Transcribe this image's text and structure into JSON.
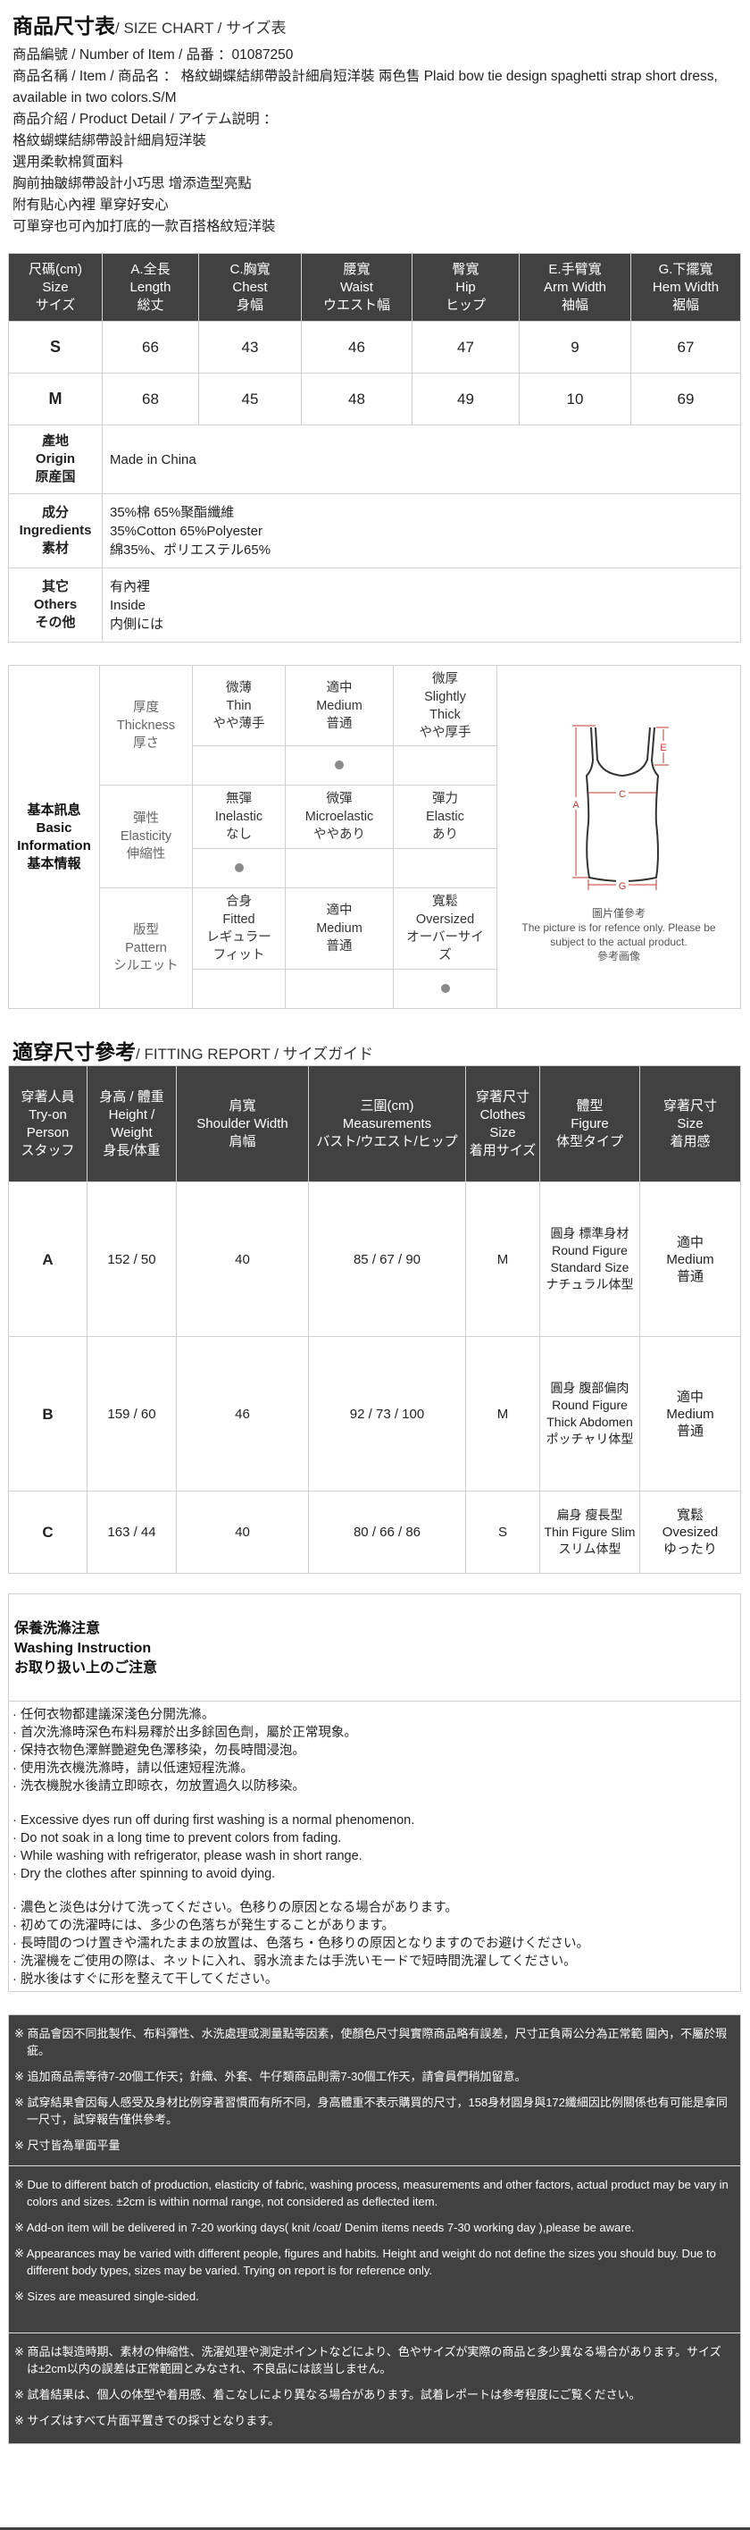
{
  "header": {
    "title_main": "商品尺寸表",
    "title_sub": "/ SIZE CHART / サイズ表"
  },
  "intro": {
    "number": "商品編號 / Number of Item / 品番 ：01087250",
    "name": "商品名稱 / Item / 商品名 ： 格紋蝴蝶結綁帶設計細肩短洋裝 兩色售 Plaid bow tie design spaghetti strap short dress, available in two colors.S/M",
    "detail_label": "商品介紹 / Product Detail / アイテム説明 ：",
    "details": [
      "格紋蝴蝶結綁帶設計細肩短洋裝",
      "選用柔軟棉質面料",
      "胸前抽皺綁帶設計小巧思 增添造型亮點",
      "附有貼心內裡 單穿好安心",
      "可單穿也可內加打底的一款百搭格紋短洋裝"
    ]
  },
  "size_table": {
    "headers": [
      [
        "尺碼(cm)",
        "Size",
        "サイズ"
      ],
      [
        "A.全長",
        "Length",
        "総丈"
      ],
      [
        "C.胸寬",
        "Chest",
        "身幅"
      ],
      [
        "腰寬",
        "Waist",
        "ウエスト幅"
      ],
      [
        "臀寬",
        "Hip",
        "ヒップ"
      ],
      [
        "E.手臂寬",
        "Arm Width",
        "袖幅"
      ],
      [
        "G.下擺寬",
        "Hem Width",
        "裾幅"
      ]
    ],
    "rows": [
      [
        "S",
        "66",
        "43",
        "46",
        "47",
        "9",
        "67"
      ],
      [
        "M",
        "68",
        "45",
        "48",
        "49",
        "10",
        "69"
      ]
    ],
    "origin": {
      "label": [
        "產地",
        "Origin",
        "原産国"
      ],
      "value": [
        "Made in China"
      ]
    },
    "ingredients": {
      "label": [
        "成分",
        "Ingredients",
        "素材"
      ],
      "value": [
        "35%棉 65%聚酯纖維",
        "35%Cotton 65%Polyester",
        "綿35%、ポリエステル65%"
      ]
    },
    "others": {
      "label": [
        "其它",
        "Others",
        "その他"
      ],
      "value": [
        "有內裡",
        "Inside",
        "内側には"
      ]
    }
  },
  "basic_info": {
    "label": [
      "基本訊息",
      "Basic",
      "Information",
      "基本情報"
    ],
    "attributes": [
      {
        "label": [
          "厚度",
          "Thickness",
          "厚さ"
        ],
        "options": [
          [
            "微薄",
            "Thin",
            "やや薄手"
          ],
          [
            "適中",
            "Medium",
            "普通"
          ],
          [
            "微厚",
            "Slightly",
            "Thick",
            "やや厚手"
          ]
        ],
        "selected": 1
      },
      {
        "label": [
          "彈性",
          "Elasticity",
          "伸縮性"
        ],
        "options": [
          [
            "無彈",
            "Inelastic",
            "なし"
          ],
          [
            "微彈",
            "Microelastic",
            "ややあり"
          ],
          [
            "彈力",
            "Elastic",
            "あり"
          ]
        ],
        "selected": 0
      },
      {
        "label": [
          "版型",
          "Pattern",
          "シルエット"
        ],
        "options": [
          [
            "合身",
            "Fitted",
            "レギュラー",
            "フィット"
          ],
          [
            "適中",
            "Medium",
            "普通"
          ],
          [
            "寬鬆",
            "Oversized",
            "オーバーサイ",
            "ズ"
          ]
        ],
        "selected": 2
      }
    ],
    "diagram": {
      "labels": {
        "a": "A",
        "c": "C",
        "e": "E",
        "g": "G"
      },
      "line_color": "#c0392b"
    },
    "caption": [
      "圖片僅參考",
      "The picture is for refence only. Please be subject to the actual product.",
      "參考画像"
    ]
  },
  "fitting": {
    "title_main": "適穿尺寸參考",
    "title_sub": "/ FITTING REPORT / サイズガイド",
    "headers": [
      [
        "穿著人員",
        "Try-on",
        "Person",
        "スタッフ"
      ],
      [
        "身高 / 體重",
        "Height / Weight",
        "身長/体重"
      ],
      [
        "肩寬",
        "Shoulder Width",
        "肩幅"
      ],
      [
        "三圍(cm)",
        "Measurements",
        "バスト/ウエスト/ヒップ"
      ],
      [
        "穿著尺寸",
        "Clothes Size",
        "着用サイズ"
      ],
      [
        "體型",
        "Figure",
        "体型タイプ"
      ],
      [
        "穿著尺寸",
        "Size",
        "着用感"
      ]
    ],
    "rows": [
      {
        "person": "A",
        "hw": "152 / 50",
        "shoulder": "40",
        "measure": "85 / 67 / 90",
        "size": "M",
        "figure": [
          "圓身 標準身材",
          "Round Figure Standard Size",
          "ナチュラル体型"
        ],
        "feel": [
          "適中",
          "Medium",
          "普通"
        ]
      },
      {
        "person": "B",
        "hw": "159 / 60",
        "shoulder": "46",
        "measure": "92 / 73 / 100",
        "size": "M",
        "figure": [
          "圓身 腹部偏肉",
          "Round Figure Thick Abdomen",
          "ポッチャリ体型"
        ],
        "feel": [
          "適中",
          "Medium",
          "普通"
        ]
      },
      {
        "person": "C",
        "hw": "163 / 44",
        "shoulder": "40",
        "measure": "80 / 66 / 86",
        "size": "S",
        "figure": [
          "扁身 瘦長型",
          "Thin Figure Slim",
          "スリム体型"
        ],
        "feel": [
          "寬鬆",
          "Ovesized",
          "ゆったり"
        ]
      }
    ]
  },
  "washing": {
    "title": [
      "保養洗滌注意",
      "Washing Instruction",
      "お取り扱い上のご注意"
    ],
    "zh": [
      "· 任何衣物都建議深淺色分開洗滌。",
      "· 首次洗滌時深色布料易釋於出多餘固色劑，屬於正常現象。",
      "· 保持衣物色澤鮮艷避免色澤移染，勿長時間浸泡。",
      "· 使用洗衣機洗滌時，請以低速短程洗滌。",
      "· 洗衣機脫水後請立即晾衣，勿放置過久以防移染。"
    ],
    "en": [
      "· Excessive dyes run off during first washing is a normal phenomenon.",
      "· Do not soak in a long time to prevent colors from fading.",
      "· While washing with refrigerator, please wash in short range.",
      "· Dry the clothes after spinning to avoid dying."
    ],
    "ja": [
      "· 濃色と淡色は分けて洗ってください。色移りの原因となる場合があります。",
      "· 初めての洗濯時には、多少の色落ちが発生することがあります。",
      "· 長時間のつけ置きや濡れたままの放置は、色落ち・色移りの原因となりますのでお避けください。",
      "· 洗濯機をご使用の際は、ネットに入れ、弱水流または手洗いモードで短時間洗濯してください。",
      "· 脱水後はすぐに形を整えて干してください。"
    ]
  },
  "notes": {
    "zh": [
      "※ 商品會因不同批製作、布料彈性、水洗處理或測量點等因素，使顏色尺寸與實際商品略有誤差，尺寸正負兩公分為正常範 圍內，不屬於瑕疵。",
      "※ 追加商品需等待7-20個工作天；針織、外套、牛仔類商品則需7-30個工作天，請會員們稍加留意。",
      "※ 試穿結果會因每人感受及身材比例穿著習慣而有所不同，身高體重不表示購買的尺寸，158身材圓身與172纖細因比例關係也有可能是拿同一尺寸，試穿報告僅供參考。",
      "※ 尺寸皆為單面平量"
    ],
    "en": [
      "※ Due to different batch of production, elasticity of fabric, washing process, measurements and other factors, actual product may be vary in colors and sizes. ±2cm is within normal range, not considered as deflected item.",
      "※ Add-on item will be delivered in 7-20 working days( knit /coat/ Denim items needs 7-30 working day ),please be aware.",
      "※ Appearances may be varied with different people, figures and habits. Height and weight do not define the sizes you should buy. Due to different body types, sizes may be varied. Trying on report is for reference only.",
      "※ Sizes are measured single-sided."
    ],
    "ja": [
      "※ 商品は製造時期、素材の伸縮性、洗濯処理や測定ポイントなどにより、色やサイズが実際の商品と多少異なる場合があります。サイズは±2cm以内の誤差は正常範囲とみなされ、不良品には該当しません。",
      "※ 試着結果は、個人の体型や着用感、着こなしにより異なる場合があります。試着レポートは参考程度にご覧ください。",
      "※ サイズはすべて片面平置きでの採寸となります。"
    ]
  }
}
